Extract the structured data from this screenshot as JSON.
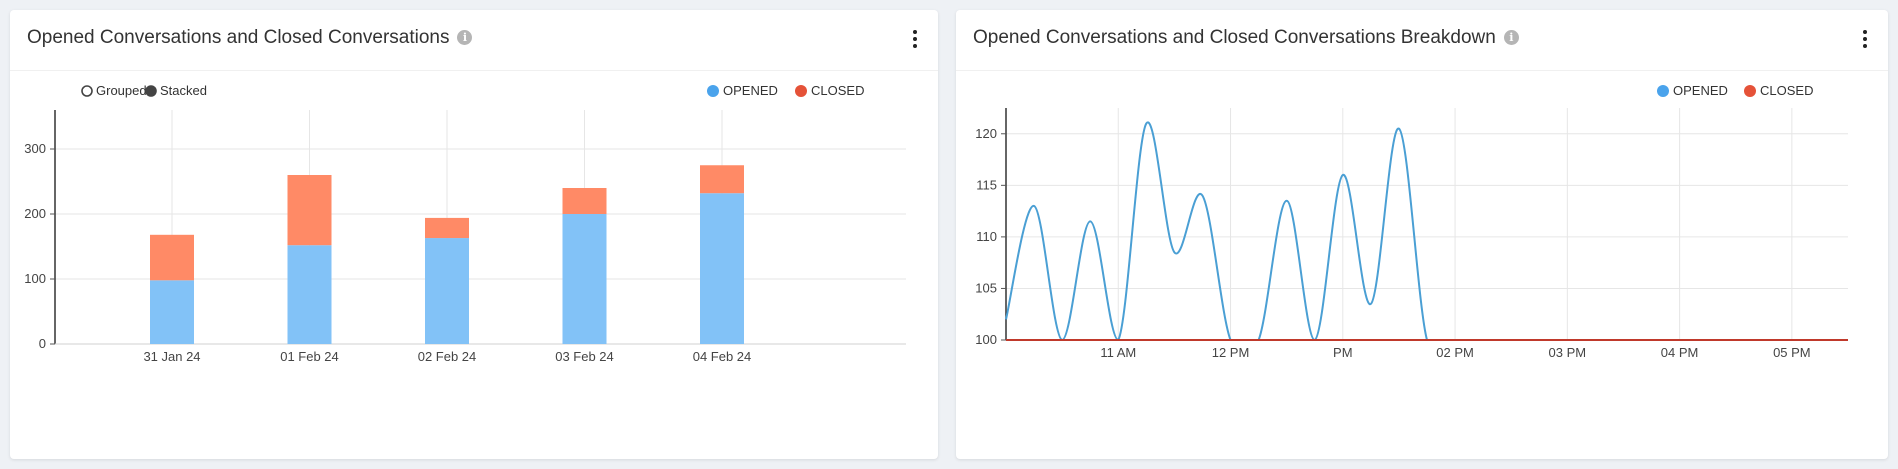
{
  "left_panel": {
    "title": "Opened Conversations and Closed Conversations",
    "info_glyph": "i",
    "menu_icon": "kebab-icon",
    "mode_options": [
      {
        "label": "Grouped",
        "selected": false
      },
      {
        "label": "Stacked",
        "selected": true
      }
    ]
  },
  "right_panel": {
    "title": "Opened Conversations and Closed Conversations Breakdown",
    "info_glyph": "i",
    "menu_icon": "kebab-icon"
  },
  "colors": {
    "opened_bar": "#82c2f7",
    "closed_bar": "#ff8a66",
    "opened_legend": "#4aa3ec",
    "closed_legend": "#e55238",
    "opened_line": "#4a9fd4",
    "closed_line": "#c0392b"
  },
  "chart_data": [
    {
      "type": "bar",
      "stacked": true,
      "categories": [
        "31 Jan 24",
        "01 Feb 24",
        "02 Feb 24",
        "03 Feb 24",
        "04 Feb 24"
      ],
      "series": [
        {
          "name": "OPENED",
          "values": [
            98,
            152,
            163,
            200,
            232
          ]
        },
        {
          "name": "CLOSED",
          "values": [
            70,
            108,
            31,
            40,
            43
          ]
        }
      ],
      "yticks": [
        0,
        100,
        200,
        300
      ],
      "ylim": [
        0,
        360
      ],
      "grid": true,
      "legend": "top-right"
    },
    {
      "type": "line",
      "series": [
        {
          "name": "OPENED",
          "x": [
            10.0,
            10.25,
            10.5,
            10.75,
            11.0,
            11.25,
            11.5,
            11.75,
            12.0,
            12.25,
            12.5,
            12.75,
            13.0,
            13.25,
            13.5,
            13.75,
            14.0,
            14.25,
            14.5,
            14.75,
            15.0,
            15.25,
            15.5,
            15.75,
            16.0,
            16.25,
            16.5,
            16.75,
            17.0,
            17.25,
            17.5
          ],
          "values": [
            102,
            113,
            100,
            111.5,
            100,
            121,
            108.5,
            114,
            100,
            100,
            113.5,
            100,
            116,
            103.5,
            120.5,
            100,
            100,
            100,
            100,
            100,
            100,
            100,
            100,
            100,
            100,
            100,
            100,
            100,
            100,
            100,
            100
          ]
        },
        {
          "name": "CLOSED",
          "x": [
            10.0,
            17.5
          ],
          "values": [
            100,
            100
          ]
        }
      ],
      "xticks": [
        "11 AM",
        "12 PM",
        "PM",
        "02 PM",
        "03 PM",
        "04 PM",
        "05 PM"
      ],
      "yticks": [
        100,
        105,
        110,
        115,
        120
      ],
      "ylim": [
        100,
        122.5
      ],
      "grid": true,
      "legend": "top-right"
    }
  ]
}
